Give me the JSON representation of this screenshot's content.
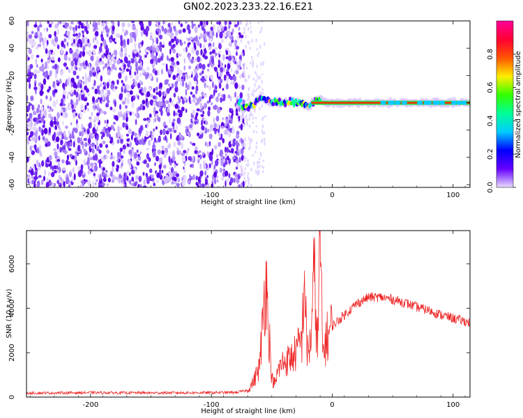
{
  "title": "GN02.2023.233.22.16.E21",
  "colors": {
    "speckle_dark": "#5a00e6",
    "speckle_light": "#d9c4ff",
    "snr_line": "#ee2222"
  },
  "chart_data": [
    {
      "type": "heatmap",
      "title": "",
      "xlabel": "Height of straight line (km)",
      "ylabel": "Frequency (Hz)",
      "xlim": [
        -253,
        114
      ],
      "ylim": [
        -62,
        60
      ],
      "xticks": [
        -200,
        -100,
        0,
        100
      ],
      "yticks": [
        -60,
        -40,
        -20,
        0,
        20,
        40,
        60
      ],
      "colorbar": {
        "label": "Normalized spectral amplitude",
        "range": [
          0,
          1
        ],
        "ticks": [
          "0.0",
          "0.2",
          "0.4",
          "0.6",
          "0.8"
        ],
        "tick_values": [
          0,
          0.2,
          0.4,
          0.6,
          0.8
        ],
        "stops": [
          "#e8dcff",
          "#6600ff",
          "#0000ff",
          "#00ccff",
          "#00ff99",
          "#33ff00",
          "#ffee00",
          "#ff5500",
          "#ff0033",
          "#ff0099"
        ]
      },
      "features": {
        "noise_region_x": [
          -253,
          -73
        ],
        "sparse_noise_x": [
          -73,
          -55
        ],
        "transition_x": [
          -78,
          -10
        ],
        "signal_line_freq": 0,
        "signal_line_x": [
          0,
          114
        ]
      },
      "signal_track": [
        {
          "x": -75,
          "f": -4
        },
        {
          "x": -70,
          "f": -3
        },
        {
          "x": -65,
          "f": -2
        },
        {
          "x": -60,
          "f": 4
        },
        {
          "x": -55,
          "f": 2
        },
        {
          "x": -50,
          "f": 0
        },
        {
          "x": -45,
          "f": 1
        },
        {
          "x": -40,
          "f": 0
        },
        {
          "x": -35,
          "f": 1
        },
        {
          "x": -30,
          "f": 0
        },
        {
          "x": -25,
          "f": -1
        },
        {
          "x": -20,
          "f": -3
        },
        {
          "x": -15,
          "f": 1
        },
        {
          "x": -10,
          "f": 2
        },
        {
          "x": -5,
          "f": 0
        },
        {
          "x": 0,
          "f": 0
        },
        {
          "x": 114,
          "f": 0
        }
      ]
    },
    {
      "type": "line",
      "title": "",
      "xlabel": "Height of straight line (km)",
      "ylabel": "SNR (10 * v/v)",
      "xlim": [
        -253,
        114
      ],
      "ylim": [
        0,
        7500
      ],
      "xticks": [
        -200,
        -100,
        0,
        100
      ],
      "yticks": [
        0,
        2000,
        4000,
        6000
      ],
      "series": [
        {
          "x": [
            -253,
            -200,
            -150,
            -100,
            -80,
            -70,
            -65,
            -60,
            -55,
            -50,
            -47,
            -45,
            -40,
            -35,
            -30,
            -25,
            -23,
            -21,
            -18,
            -15,
            -12,
            -10,
            -8,
            -5,
            0,
            10,
            20,
            30,
            40,
            50,
            60,
            70,
            80,
            90,
            100,
            114
          ],
          "values": [
            180,
            200,
            190,
            200,
            210,
            300,
            700,
            1400,
            5500,
            800,
            600,
            1200,
            1600,
            1700,
            2000,
            2600,
            5700,
            2000,
            2400,
            5500,
            2200,
            7500,
            2000,
            2600,
            3200,
            3700,
            4200,
            4500,
            4500,
            4400,
            4250,
            4050,
            3900,
            3700,
            3550,
            3350
          ]
        }
      ]
    }
  ]
}
